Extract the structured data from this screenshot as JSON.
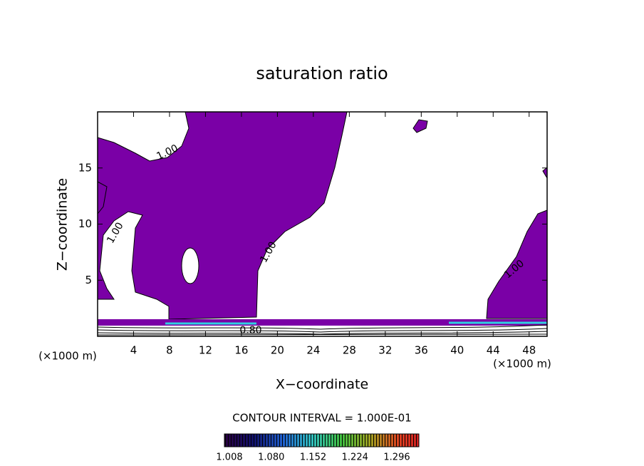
{
  "chart_data": {
    "type": "contour",
    "title": "saturation ratio",
    "x_label": "X−coordinate",
    "y_label": "Z−coordinate",
    "x_unit_label": "(×1000 m)",
    "y_unit_label": "(×1000 m)",
    "xlim": [
      0,
      50
    ],
    "xticks": [
      4,
      8,
      12,
      16,
      20,
      24,
      28,
      32,
      36,
      40,
      44,
      48
    ],
    "ylim": [
      0,
      20
    ],
    "yticks": [
      5,
      10,
      15
    ],
    "color": "#7a00a6",
    "contour_labels": [
      "1.00",
      "1.00",
      "1.00",
      "1.00",
      "0.80"
    ],
    "contour_interval": "CONTOUR INTERVAL = 1.000E-01",
    "colorbar_labels": [
      "1.008",
      "1.080",
      "1.152",
      "1.224",
      "1.296"
    ]
  }
}
